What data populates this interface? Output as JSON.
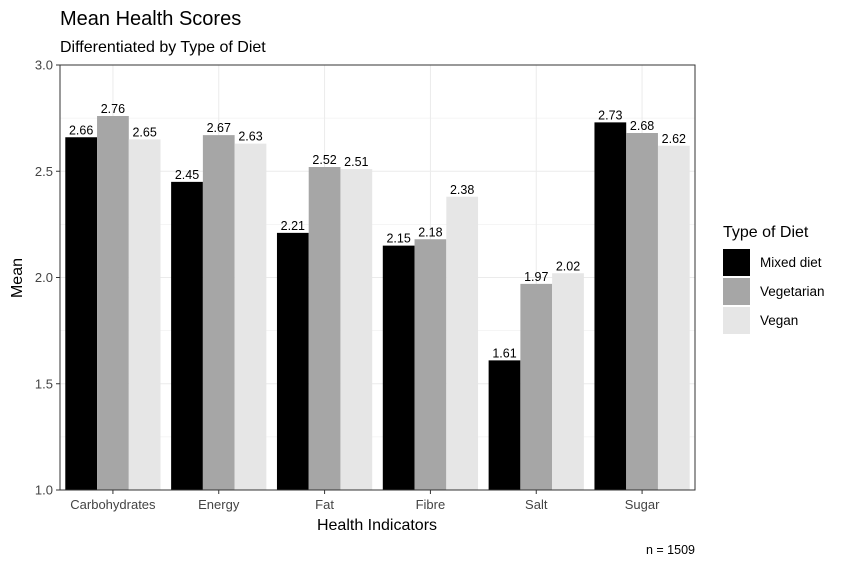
{
  "chart_data": {
    "type": "bar",
    "title": "Mean Health Scores",
    "subtitle": "Differentiated by Type of Diet",
    "xlabel": "Health Indicators",
    "ylabel": "Mean",
    "ylim": [
      1.0,
      3.0
    ],
    "yticks": [
      "1.0",
      "1.5",
      "2.0",
      "2.5",
      "3.0"
    ],
    "categories": [
      "Carbohydrates",
      "Energy",
      "Fat",
      "Fibre",
      "Salt",
      "Sugar"
    ],
    "series": [
      {
        "name": "Mixed diet",
        "color": "#000000",
        "values": [
          2.66,
          2.45,
          2.21,
          2.15,
          1.61,
          2.73
        ]
      },
      {
        "name": "Vegetarian",
        "color": "#a6a6a6",
        "values": [
          2.76,
          2.67,
          2.52,
          2.18,
          1.97,
          2.68
        ]
      },
      {
        "name": "Vegan",
        "color": "#e6e6e6",
        "values": [
          2.65,
          2.63,
          2.51,
          2.38,
          2.02,
          2.62
        ]
      }
    ],
    "legend": {
      "title": "Type of Diet",
      "position": "right"
    },
    "grid": true,
    "caption": "n = 1509"
  }
}
